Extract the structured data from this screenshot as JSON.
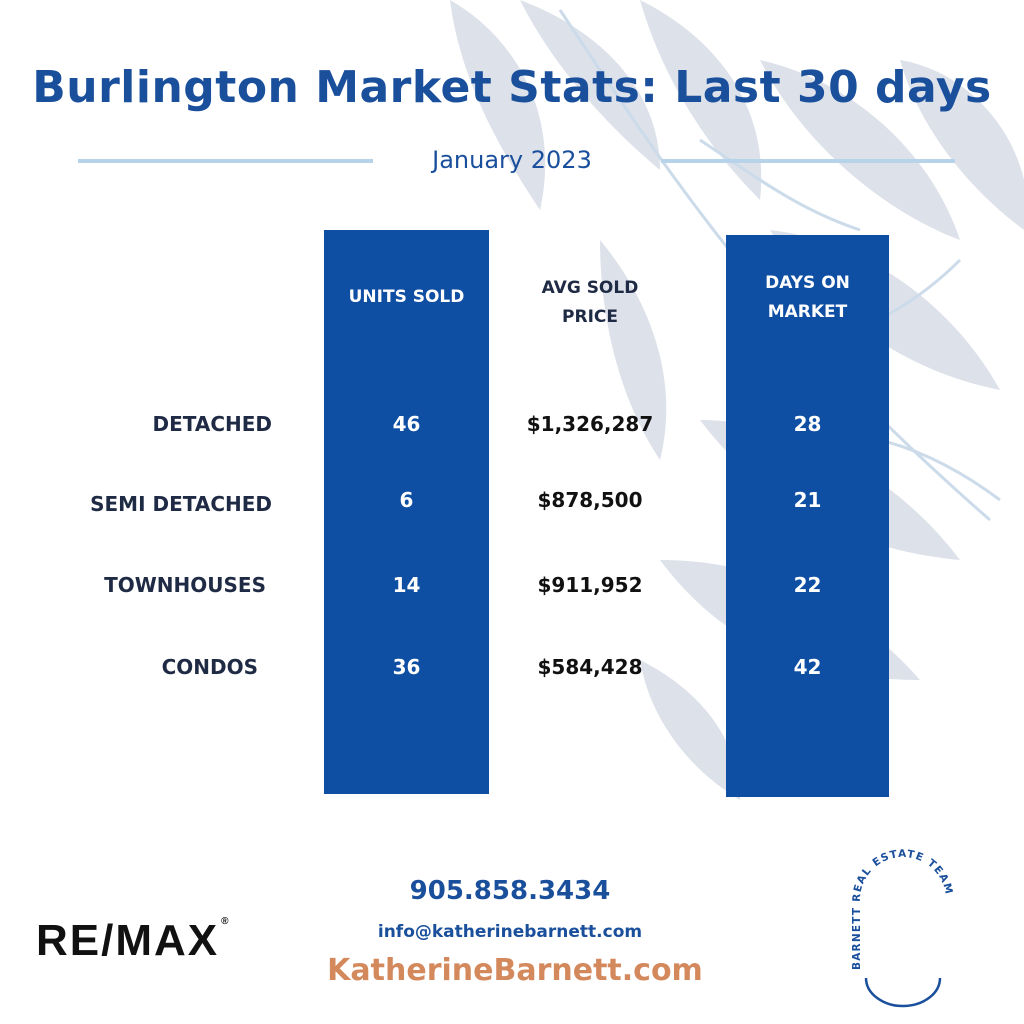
{
  "title": "Burlington Market Stats: Last 30 days",
  "subtitle": "January 2023",
  "columns": {
    "units_sold": "UNITS SOLD",
    "avg_sold_price": "AVG SOLD\nPRICE",
    "days_on_market": "DAYS ON\nMARKET"
  },
  "rows": [
    {
      "label": "DETACHED",
      "units_sold": "46",
      "avg_sold_price": "$1,326,287",
      "days_on_market": "28"
    },
    {
      "label": "SEMI DETACHED",
      "units_sold": "6",
      "avg_sold_price": "$878,500",
      "days_on_market": "21"
    },
    {
      "label": "TOWNHOUSES",
      "units_sold": "14",
      "avg_sold_price": "$911,952",
      "days_on_market": "22"
    },
    {
      "label": "CONDOS",
      "units_sold": "36",
      "avg_sold_price": "$584,428",
      "days_on_market": "42"
    }
  ],
  "contact": {
    "phone": "905.858.3434",
    "email": "info@katherinebarnett.com",
    "website": "KatherineBarnett.com"
  },
  "logos": {
    "brokerage": "RE/MAX",
    "team": "BARNETT REAL ESTATE TEAM"
  },
  "colors": {
    "primary_blue": "#1a4f9c",
    "column_blue": "#0f4fa3",
    "accent_orange": "#d4895d",
    "rule_blue": "#b7d3ea",
    "leaf_gray": "#dde1ea"
  }
}
